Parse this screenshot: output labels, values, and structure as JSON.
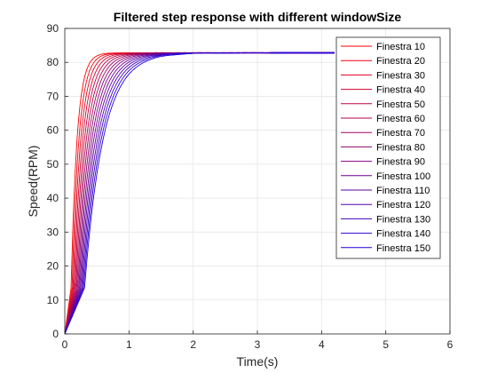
{
  "chart_data": {
    "type": "line",
    "title": "Filtered step response with different windowSize",
    "xlabel": "Time(s)",
    "ylabel": "Speed(RPM)",
    "xlim": [
      0,
      6
    ],
    "ylim": [
      0,
      90
    ],
    "xticks": [
      "0",
      "1",
      "2",
      "3",
      "4",
      "5",
      "6"
    ],
    "yticks": [
      "0",
      "10",
      "20",
      "30",
      "40",
      "50",
      "60",
      "70",
      "80",
      "90"
    ],
    "grid": true,
    "legend_position": "top-right",
    "x_data_end": 4.2,
    "steady_state": 82.8,
    "series": [
      {
        "name": "Finestra 10",
        "color": "#ff0000",
        "rise_time": 0.33
      },
      {
        "name": "Finestra 20",
        "color": "#ef0010",
        "rise_time": 0.38
      },
      {
        "name": "Finestra 30",
        "color": "#df0020",
        "rise_time": 0.43
      },
      {
        "name": "Finestra 40",
        "color": "#cf0030",
        "rise_time": 0.48
      },
      {
        "name": "Finestra 50",
        "color": "#bf0040",
        "rise_time": 0.53
      },
      {
        "name": "Finestra 60",
        "color": "#af0050",
        "rise_time": 0.58
      },
      {
        "name": "Finestra 70",
        "color": "#9f0060",
        "rise_time": 0.63
      },
      {
        "name": "Finestra 80",
        "color": "#8f0070",
        "rise_time": 0.68
      },
      {
        "name": "Finestra 90",
        "color": "#7f0080",
        "rise_time": 0.73
      },
      {
        "name": "Finestra 100",
        "color": "#6f0090",
        "rise_time": 0.78
      },
      {
        "name": "Finestra 110",
        "color": "#5f00a0",
        "rise_time": 0.83
      },
      {
        "name": "Finestra 120",
        "color": "#4f00b0",
        "rise_time": 0.88
      },
      {
        "name": "Finestra 130",
        "color": "#3f00c0",
        "rise_time": 0.93
      },
      {
        "name": "Finestra 140",
        "color": "#2f00d0",
        "rise_time": 0.98
      },
      {
        "name": "Finestra 150",
        "color": "#1f00e0",
        "rise_time": 1.03
      }
    ]
  }
}
